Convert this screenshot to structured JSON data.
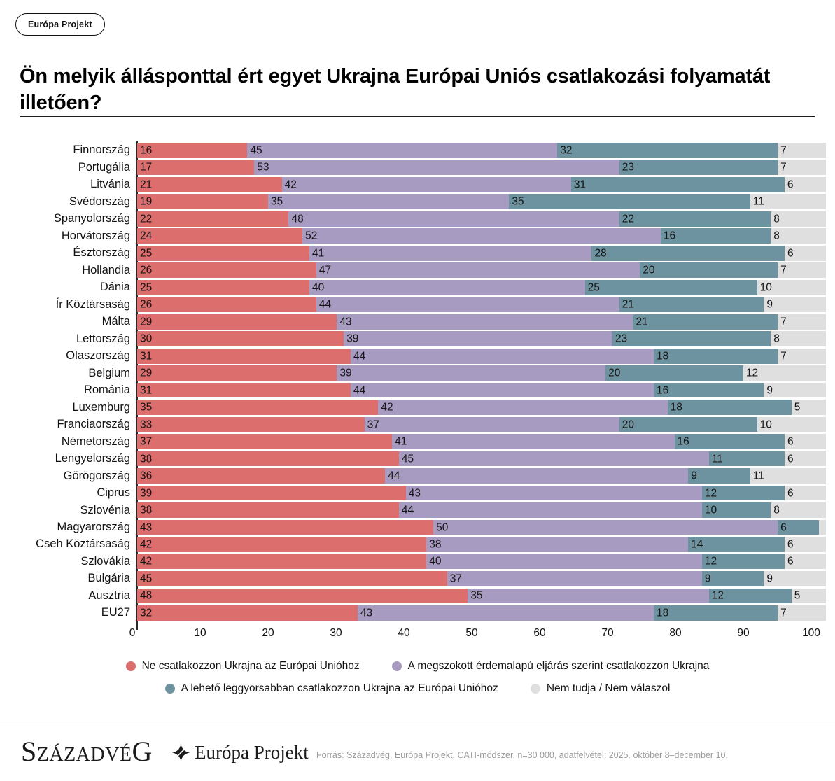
{
  "badge": {
    "label": "Európa Projekt"
  },
  "chart_data": {
    "type": "bar",
    "orientation": "horizontal",
    "stacked": true,
    "title": "Ön melyik állásponttal ért egyet Ukrajna Európai Uniós csatlakozási folyamatát illetően?",
    "xlabel": "",
    "ylabel": "",
    "xlim": [
      0,
      100
    ],
    "x_ticks": [
      0,
      10,
      20,
      30,
      40,
      50,
      60,
      70,
      80,
      90,
      100
    ],
    "grid": false,
    "value_label_min": 5,
    "categories": [
      "Finnország",
      "Portugália",
      "Litvánia",
      "Svédország",
      "Spanyolország",
      "Horvátország",
      "Észtország",
      "Hollandia",
      "Dánia",
      "Ír Köztársaság",
      "Málta",
      "Lettország",
      "Olaszország",
      "Belgium",
      "Románia",
      "Luxemburg",
      "Franciaország",
      "Németország",
      "Lengyelország",
      "Görögország",
      "Ciprus",
      "Szlovénia",
      "Magyarország",
      "Cseh Köztársaság",
      "Szlovákia",
      "Bulgária",
      "Ausztria",
      "EU27"
    ],
    "series": [
      {
        "name": "Ne csatlakozzon Ukrajna az Európai Unióhoz",
        "color": "#dc6e6e",
        "values": [
          16,
          17,
          21,
          19,
          22,
          24,
          25,
          26,
          25,
          26,
          29,
          30,
          31,
          29,
          31,
          35,
          33,
          37,
          38,
          36,
          39,
          38,
          43,
          42,
          42,
          45,
          48,
          32
        ]
      },
      {
        "name": "A megszokott érdemalapú eljárás szerint csatlakozzon Ukrajna",
        "color": "#a89bc2",
        "values": [
          45,
          53,
          42,
          35,
          48,
          52,
          41,
          47,
          40,
          44,
          43,
          39,
          44,
          39,
          44,
          42,
          37,
          41,
          45,
          44,
          43,
          44,
          50,
          38,
          40,
          37,
          35,
          43
        ]
      },
      {
        "name": "A lehető leggyorsabban csatlakozzon Ukrajna az Európai Unióhoz",
        "color": "#6e93a0",
        "values": [
          32,
          23,
          31,
          35,
          22,
          16,
          28,
          20,
          25,
          21,
          21,
          23,
          18,
          20,
          16,
          18,
          20,
          16,
          11,
          9,
          12,
          10,
          6,
          14,
          12,
          9,
          12,
          18
        ]
      },
      {
        "name": "Nem tudja / Nem válaszol",
        "color": "#dfdfdf",
        "values": [
          7,
          7,
          6,
          11,
          8,
          8,
          6,
          7,
          10,
          9,
          7,
          8,
          7,
          12,
          9,
          5,
          10,
          6,
          6,
          11,
          6,
          8,
          1,
          6,
          6,
          9,
          5,
          7
        ]
      }
    ],
    "legend_layout": [
      [
        0,
        1
      ],
      [
        2,
        3
      ]
    ]
  },
  "footer": {
    "logo_primary": "SzázadvéG",
    "logo_secondary": "Európa Projekt",
    "source": "Forrás: Századvég, Európa Projekt, CATI-módszer, n=30 000, adatfelvétel: 2025. október 8–december 10."
  }
}
